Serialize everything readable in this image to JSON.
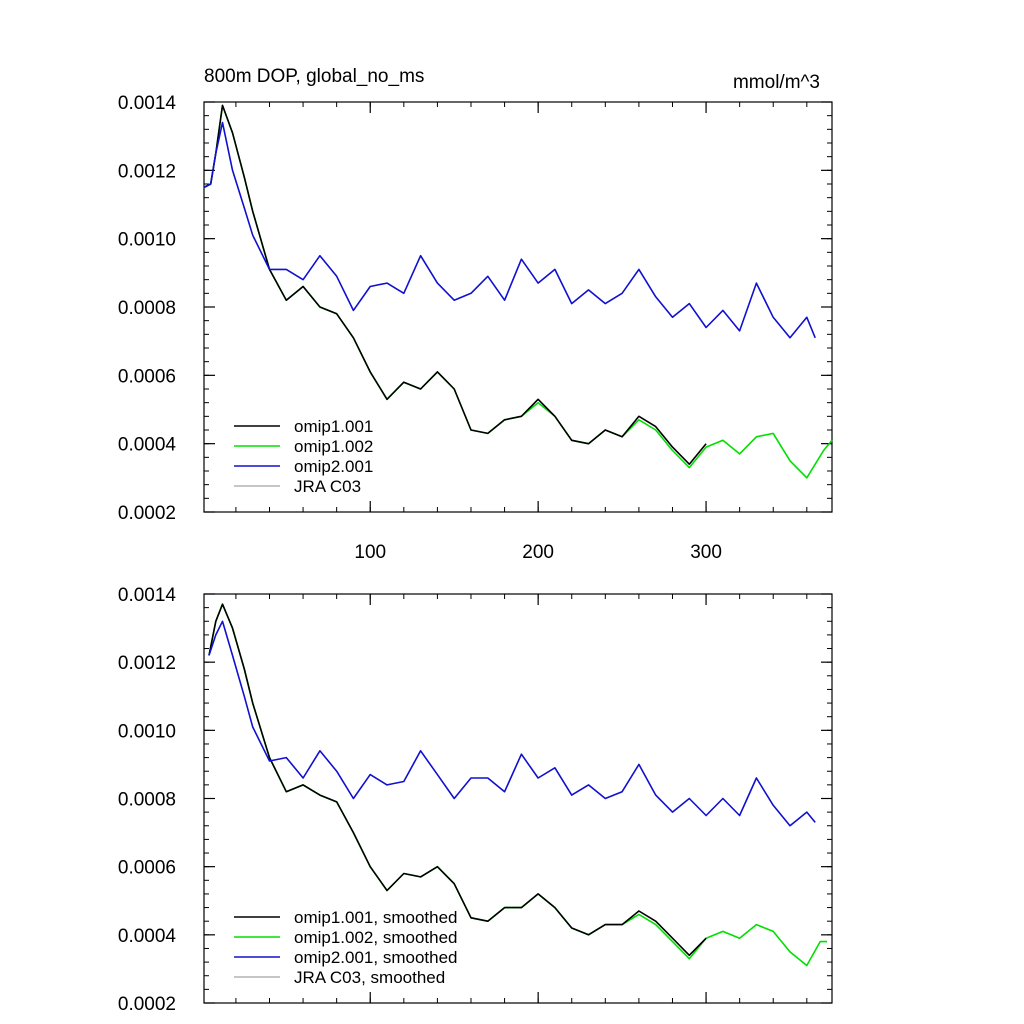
{
  "figure": {
    "title_left": "800m DOP, global_no_ms",
    "title_right": "mmol/m^3"
  },
  "colors": {
    "omip1_001": "#000000",
    "omip1_002": "#00e000",
    "omip2_001": "#1010d0",
    "jra_c03": "#b4b4b4"
  },
  "chart_data": [
    {
      "type": "line",
      "panel": "top",
      "title": "800m DOP, global_no_ms",
      "units_label": "mmol/m^3",
      "xlim": [
        1,
        375
      ],
      "ylim": [
        0.0002,
        0.0014
      ],
      "x_tick_values": [
        100,
        200,
        300
      ],
      "x_tick_labels": [
        "100",
        "200",
        "300"
      ],
      "y_tick_values": [
        0.0002,
        0.0004,
        0.0006,
        0.0008,
        0.001,
        0.0012,
        0.0014
      ],
      "y_tick_labels": [
        "0.0002",
        "0.0004",
        "0.0006",
        "0.0008",
        "0.0010",
        "0.0012",
        "0.0014"
      ],
      "legend_position": "bottom-left",
      "series": [
        {
          "name": "omip1.001",
          "color_key": "omip1_001",
          "x": [
            1,
            5,
            8,
            12,
            18,
            25,
            30,
            40,
            50,
            60,
            70,
            80,
            90,
            100,
            110,
            120,
            130,
            140,
            150,
            160,
            170,
            180,
            190,
            200,
            210,
            220,
            230,
            240,
            250,
            260,
            270,
            280,
            290,
            300
          ],
          "y": [
            0.00115,
            0.00116,
            0.00125,
            0.00139,
            0.00131,
            0.00118,
            0.00108,
            0.00091,
            0.00082,
            0.00086,
            0.0008,
            0.00078,
            0.00071,
            0.00061,
            0.00053,
            0.00058,
            0.00056,
            0.00061,
            0.00056,
            0.00044,
            0.00043,
            0.00047,
            0.00048,
            0.00053,
            0.00048,
            0.00041,
            0.0004,
            0.00044,
            0.00042,
            0.00048,
            0.00045,
            0.00039,
            0.00034,
            0.0004
          ]
        },
        {
          "name": "omip1.002",
          "color_key": "omip1_002",
          "x": [
            1,
            5,
            8,
            12,
            18,
            25,
            30,
            40,
            50,
            60,
            70,
            80,
            90,
            100,
            110,
            120,
            130,
            140,
            150,
            160,
            170,
            180,
            190,
            200,
            210,
            220,
            230,
            240,
            250,
            260,
            270,
            280,
            290,
            300,
            310,
            320,
            330,
            340,
            350,
            360,
            370,
            375
          ],
          "y": [
            0.00115,
            0.00116,
            0.00125,
            0.00139,
            0.00131,
            0.00118,
            0.00108,
            0.00091,
            0.00082,
            0.00086,
            0.0008,
            0.00078,
            0.00071,
            0.00061,
            0.00053,
            0.00058,
            0.00056,
            0.00061,
            0.00056,
            0.00044,
            0.00043,
            0.00047,
            0.00048,
            0.00052,
            0.00048,
            0.00041,
            0.0004,
            0.00044,
            0.00042,
            0.00047,
            0.00044,
            0.00038,
            0.00033,
            0.00039,
            0.00041,
            0.00037,
            0.00042,
            0.00043,
            0.00035,
            0.0003,
            0.00038,
            0.00041
          ]
        },
        {
          "name": "omip2.001",
          "color_key": "omip2_001",
          "x": [
            1,
            5,
            8,
            12,
            18,
            25,
            30,
            40,
            50,
            60,
            70,
            80,
            90,
            100,
            110,
            120,
            130,
            140,
            150,
            160,
            170,
            180,
            190,
            200,
            210,
            220,
            230,
            240,
            250,
            260,
            270,
            280,
            290,
            300,
            310,
            320,
            330,
            340,
            350,
            360,
            365
          ],
          "y": [
            0.00115,
            0.00116,
            0.00125,
            0.00134,
            0.0012,
            0.00109,
            0.00101,
            0.00091,
            0.00091,
            0.00088,
            0.00095,
            0.00089,
            0.00079,
            0.00086,
            0.00087,
            0.00084,
            0.00095,
            0.00087,
            0.00082,
            0.00084,
            0.00089,
            0.00082,
            0.00094,
            0.00087,
            0.00091,
            0.00081,
            0.00085,
            0.00081,
            0.00084,
            0.00091,
            0.00083,
            0.00077,
            0.00081,
            0.00074,
            0.00079,
            0.00073,
            0.00087,
            0.00077,
            0.00071,
            0.00077,
            0.00071
          ]
        },
        {
          "name": "JRA C03",
          "color_key": "jra_c03",
          "x": [],
          "y": []
        }
      ]
    },
    {
      "type": "line",
      "panel": "bottom",
      "xlim": [
        1,
        375
      ],
      "ylim": [
        0.0002,
        0.0014
      ],
      "x_tick_values": [
        100,
        200,
        300
      ],
      "x_tick_labels": [],
      "y_tick_values": [
        0.0002,
        0.0004,
        0.0006,
        0.0008,
        0.001,
        0.0012,
        0.0014
      ],
      "y_tick_labels": [
        "0.0002",
        "0.0004",
        "0.0006",
        "0.0008",
        "0.0010",
        "0.0012",
        "0.0014"
      ],
      "legend_position": "bottom-left",
      "series": [
        {
          "name": "omip1.001, smoothed",
          "color_key": "omip1_001",
          "x": [
            4,
            8,
            12,
            18,
            25,
            30,
            40,
            50,
            60,
            70,
            80,
            90,
            100,
            110,
            120,
            130,
            140,
            150,
            160,
            170,
            180,
            190,
            200,
            210,
            220,
            230,
            240,
            250,
            260,
            270,
            280,
            290,
            300
          ],
          "y": [
            0.00122,
            0.00132,
            0.00137,
            0.0013,
            0.00118,
            0.00108,
            0.00092,
            0.00082,
            0.00084,
            0.00081,
            0.00079,
            0.0007,
            0.0006,
            0.00053,
            0.00058,
            0.00057,
            0.0006,
            0.00055,
            0.00045,
            0.00044,
            0.00048,
            0.00048,
            0.00052,
            0.00048,
            0.00042,
            0.0004,
            0.00043,
            0.00043,
            0.00047,
            0.00044,
            0.00039,
            0.00034,
            0.00039
          ]
        },
        {
          "name": "omip1.002, smoothed",
          "color_key": "omip1_002",
          "x": [
            4,
            8,
            12,
            18,
            25,
            30,
            40,
            50,
            60,
            70,
            80,
            90,
            100,
            110,
            120,
            130,
            140,
            150,
            160,
            170,
            180,
            190,
            200,
            210,
            220,
            230,
            240,
            250,
            260,
            270,
            280,
            290,
            300,
            310,
            320,
            330,
            340,
            350,
            360,
            368,
            372
          ],
          "y": [
            0.00122,
            0.00132,
            0.00137,
            0.0013,
            0.00118,
            0.00108,
            0.00092,
            0.00082,
            0.00084,
            0.00081,
            0.00079,
            0.0007,
            0.0006,
            0.00053,
            0.00058,
            0.00057,
            0.0006,
            0.00055,
            0.00045,
            0.00044,
            0.00048,
            0.00048,
            0.00052,
            0.00048,
            0.00042,
            0.0004,
            0.00043,
            0.00043,
            0.00046,
            0.00043,
            0.00038,
            0.00033,
            0.00039,
            0.00041,
            0.00039,
            0.00043,
            0.00041,
            0.00035,
            0.00031,
            0.00038,
            0.00038
          ]
        },
        {
          "name": "omip2.001, smoothed",
          "color_key": "omip2_001",
          "x": [
            4,
            8,
            12,
            18,
            25,
            30,
            40,
            50,
            60,
            70,
            80,
            90,
            100,
            110,
            120,
            130,
            140,
            150,
            160,
            170,
            180,
            190,
            200,
            210,
            220,
            230,
            240,
            250,
            260,
            270,
            280,
            290,
            300,
            310,
            320,
            330,
            340,
            350,
            360,
            365
          ],
          "y": [
            0.00122,
            0.00128,
            0.00132,
            0.00122,
            0.0011,
            0.00101,
            0.00091,
            0.00092,
            0.00086,
            0.00094,
            0.00088,
            0.0008,
            0.00087,
            0.00084,
            0.00085,
            0.00094,
            0.00087,
            0.0008,
            0.00086,
            0.00086,
            0.00082,
            0.00093,
            0.00086,
            0.00089,
            0.00081,
            0.00084,
            0.0008,
            0.00082,
            0.0009,
            0.00081,
            0.00076,
            0.0008,
            0.00075,
            0.0008,
            0.00075,
            0.00086,
            0.00078,
            0.00072,
            0.00076,
            0.00073
          ]
        },
        {
          "name": "JRA C03, smoothed",
          "color_key": "jra_c03",
          "x": [],
          "y": []
        }
      ]
    }
  ]
}
